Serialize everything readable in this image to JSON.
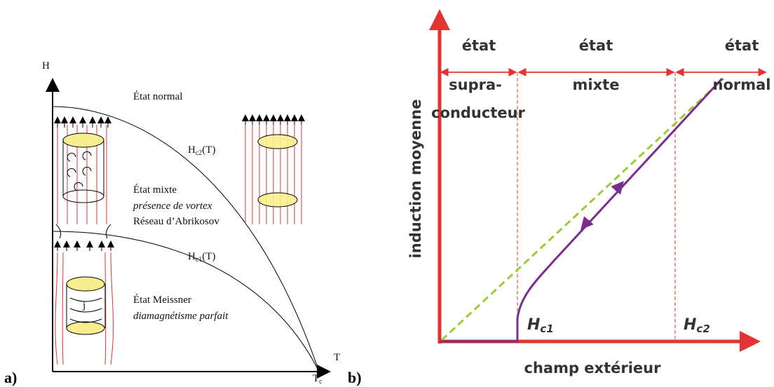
{
  "panel_a": {
    "label": "a)",
    "y_axis": "H",
    "x_axis": "T",
    "tc": {
      "main": "T",
      "sub": "c"
    },
    "hc2": {
      "main": "H",
      "sub": "c2",
      "suffix": "(T)"
    },
    "hc1": {
      "main": "H",
      "sub": "c1",
      "suffix": "(T)"
    },
    "normal_state": "État normal",
    "mixed_state": [
      "État mixte",
      "présence de vortex",
      "Réseau d’Abrikosov"
    ],
    "meissner_state": [
      "État Meissner",
      "diamagnétisme parfait"
    ],
    "current": "j"
  },
  "panel_b": {
    "label": "b)",
    "y_axis": "induction moyenne",
    "x_axis": "champ extérieur",
    "regions": [
      [
        "état",
        "supra-",
        "conducteur"
      ],
      [
        "état",
        "mixte"
      ],
      [
        "état",
        "normal"
      ]
    ],
    "hc1": {
      "main": "H",
      "sub": "c1"
    },
    "hc2": {
      "main": "H",
      "sub": "c2"
    }
  }
}
